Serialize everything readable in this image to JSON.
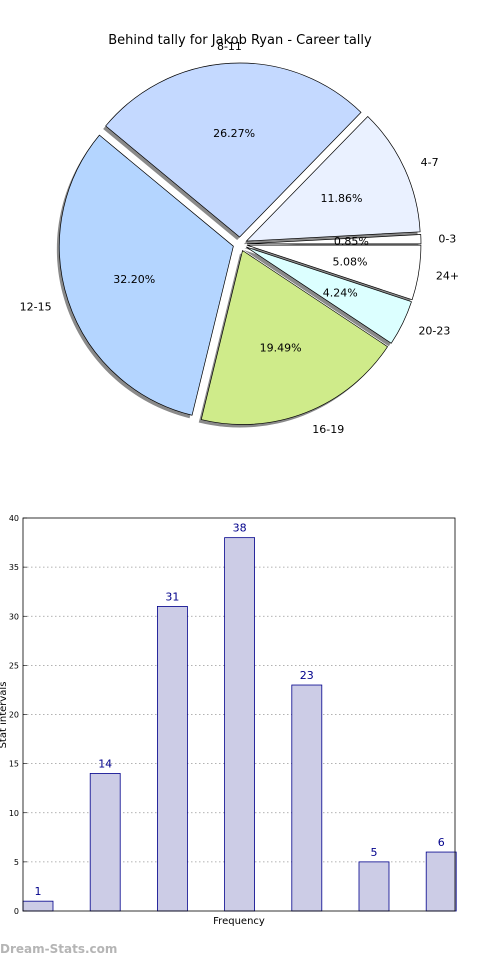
{
  "chart_data": [
    {
      "type": "pie",
      "title": "Behind tally for Jakob Ryan - Career tally",
      "slices": [
        {
          "label": "0-3",
          "percent": 0.85,
          "value_label": "0.85%",
          "color": "#ffffff"
        },
        {
          "label": "4-7",
          "percent": 11.86,
          "value_label": "11.86%",
          "color": "#eaf1ff"
        },
        {
          "label": "8-11",
          "percent": 26.27,
          "value_label": "26.27%",
          "color": "#c4d9ff"
        },
        {
          "label": "12-15",
          "percent": 32.2,
          "value_label": "32.20%",
          "color": "#b4d5ff"
        },
        {
          "label": "16-19",
          "percent": 19.49,
          "value_label": "19.49%",
          "color": "#cfeb8a"
        },
        {
          "label": "20-23",
          "percent": 4.24,
          "value_label": "4.24%",
          "color": "#dcffff"
        },
        {
          "label": "24+",
          "percent": 5.08,
          "value_label": "5.08%",
          "color": "#ffffff"
        }
      ]
    },
    {
      "type": "bar",
      "xlabel": "Frequency",
      "ylabel": "Stat intervals",
      "ylim": [
        0,
        40
      ],
      "yticks": [
        0,
        5,
        10,
        15,
        20,
        25,
        30,
        35,
        40
      ],
      "values": [
        1,
        14,
        31,
        38,
        23,
        5,
        6
      ],
      "bar_color": "#cccce6",
      "edge_color": "#00008b",
      "label_color": "#00008b",
      "grid": "horizontal dotted"
    }
  ],
  "watermark": "Dream-Stats.com"
}
